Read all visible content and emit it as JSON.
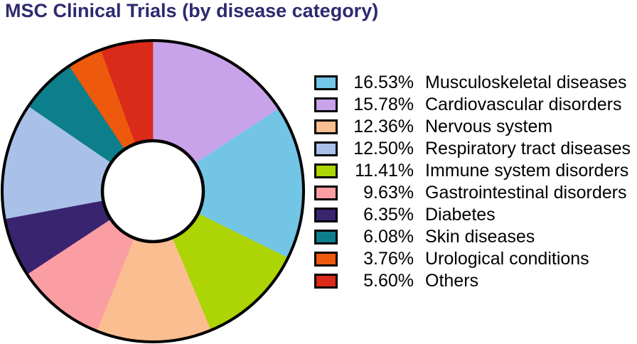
{
  "title": "MSC Clinical Trials (by disease category)",
  "title_color": "#2E2A6F",
  "chart_data": {
    "type": "pie",
    "subtype": "donut",
    "title": "MSC Clinical Trials (by disease category)",
    "unit": "%",
    "legend_position": "right",
    "outline_color": "#000000",
    "hole_color": "#FFFFFF",
    "start_angle_deg": 0,
    "clockwise": true,
    "inner_radius_ratio": 0.335,
    "slices": [
      {
        "label": "Musculoskeletal diseases",
        "value": 16.53,
        "pct_text": "16.53%",
        "color": "#72C5E5"
      },
      {
        "label": "Cardiovascular disorders",
        "value": 15.78,
        "pct_text": "15.78%",
        "color": "#C9A3E9"
      },
      {
        "label": "Nervous system",
        "value": 12.36,
        "pct_text": "12.36%",
        "color": "#FBBE90"
      },
      {
        "label": "Respiratory tract diseases",
        "value": 12.5,
        "pct_text": "12.50%",
        "color": "#A9C1E8"
      },
      {
        "label": "Immune system disorders",
        "value": 11.41,
        "pct_text": "11.41%",
        "color": "#ADD405"
      },
      {
        "label": "Gastrointestinal disorders",
        "value": 9.63,
        "pct_text": "9.63%",
        "color": "#FA9EA4"
      },
      {
        "label": "Diabetes",
        "value": 6.35,
        "pct_text": "6.35%",
        "color": "#392470"
      },
      {
        "label": "Skin diseases",
        "value": 6.08,
        "pct_text": "6.08%",
        "color": "#0D7F8C"
      },
      {
        "label": "Urological conditions",
        "value": 3.76,
        "pct_text": "3.76%",
        "color": "#ED5A0E"
      },
      {
        "label": "Others",
        "value": 5.6,
        "pct_text": "5.60%",
        "color": "#DA2A1A"
      }
    ],
    "draw_order": [
      1,
      0,
      4,
      2,
      5,
      6,
      3,
      7,
      8,
      9
    ]
  }
}
